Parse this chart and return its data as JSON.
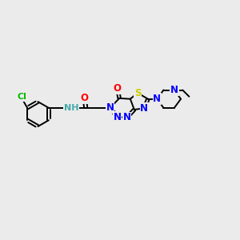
{
  "background_color": "#ebebeb",
  "bond_color": "#000000",
  "atom_colors": {
    "N": "#0000ff",
    "O": "#ff0000",
    "S": "#cccc00",
    "Cl": "#00bb00",
    "H": "#44aaaa",
    "C": "#000000"
  },
  "figsize": [
    3.0,
    3.0
  ],
  "dpi": 100,
  "fs": 8.5
}
